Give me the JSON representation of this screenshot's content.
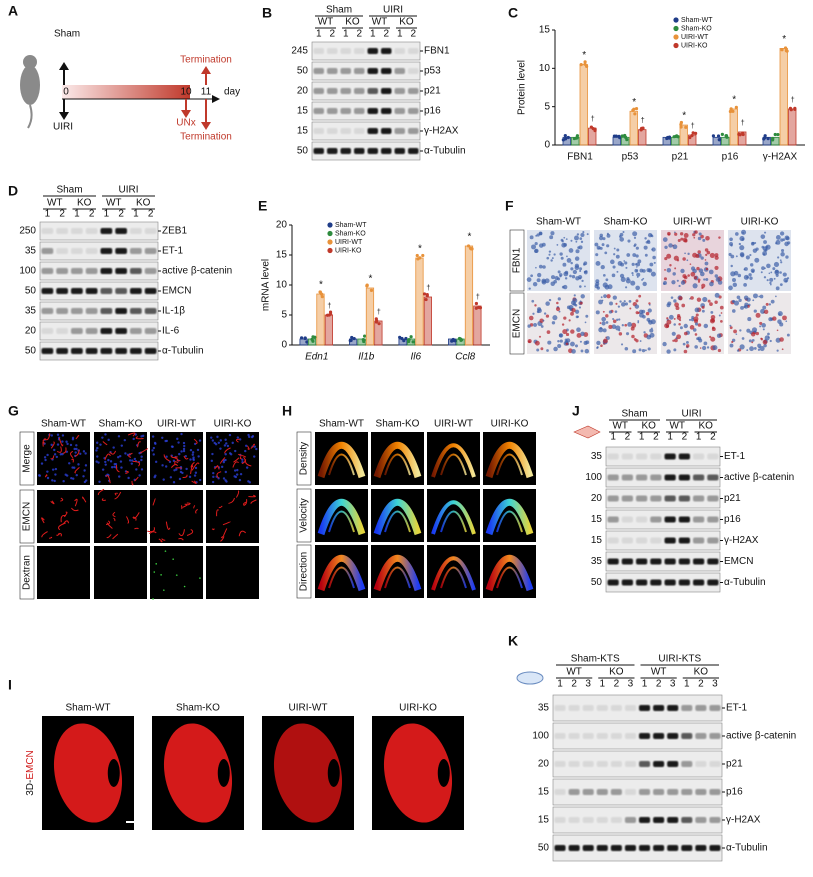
{
  "panels": {
    "A": {
      "letter": "A",
      "sham": "Sham",
      "uiri": "UIRI",
      "day0": "0",
      "day10": "10",
      "day11": "11",
      "day_unit": "day",
      "termination_top": "Termination",
      "unx": "UNx",
      "termination_bottom": "Termination"
    },
    "B": {
      "letter": "B",
      "groups": [
        "Sham",
        "UIRI"
      ],
      "genotypes": [
        "WT",
        "KO",
        "WT",
        "KO"
      ],
      "lanes": [
        "1",
        "2"
      ],
      "rows": [
        {
          "mw": "245",
          "label": "FBN1"
        },
        {
          "mw": "50",
          "label": "p53"
        },
        {
          "mw": "20",
          "label": "p21"
        },
        {
          "mw": "15",
          "label": "p16"
        },
        {
          "mw": "15",
          "label": "γ-H2AX"
        },
        {
          "mw": "50",
          "label": "α-Tubulin"
        }
      ]
    },
    "D": {
      "letter": "D",
      "groups": [
        "Sham",
        "UIRI"
      ],
      "genotypes": [
        "WT",
        "KO",
        "WT",
        "KO"
      ],
      "lanes": [
        "1",
        "2"
      ],
      "rows": [
        {
          "mw": "250",
          "label": "ZEB1"
        },
        {
          "mw": "35",
          "label": "ET-1"
        },
        {
          "mw": "100",
          "label": "active β-catenin"
        },
        {
          "mw": "50",
          "label": "EMCN"
        },
        {
          "mw": "35",
          "label": "IL-1β"
        },
        {
          "mw": "20",
          "label": "IL-6"
        },
        {
          "mw": "50",
          "label": "α-Tubulin"
        }
      ]
    },
    "F": {
      "letter": "F",
      "columns": [
        "Sham-WT",
        "Sham-KO",
        "UIRI-WT",
        "UIRI-KO"
      ],
      "rows": [
        "FBN1",
        "EMCN"
      ]
    },
    "G": {
      "letter": "G",
      "columns": [
        "Sham-WT",
        "Sham-KO",
        "UIRI-WT",
        "UIRI-KO"
      ],
      "rows": [
        "Merge",
        "EMCN",
        "Dextran"
      ]
    },
    "H": {
      "letter": "H",
      "columns": [
        "Sham-WT",
        "Sham-KO",
        "UIRI-WT",
        "UIRI-KO"
      ],
      "rows": [
        "Density",
        "Velocity",
        "Direction"
      ]
    },
    "I": {
      "letter": "I",
      "columns": [
        "Sham-WT",
        "Sham-KO",
        "UIRI-WT",
        "UIRI-KO"
      ],
      "row_prefix": "3D-",
      "row_stain": "EMCN"
    },
    "J": {
      "letter": "J",
      "groups": [
        "Sham",
        "UIRI"
      ],
      "genotypes": [
        "WT",
        "KO",
        "WT",
        "KO"
      ],
      "lanes": [
        "1",
        "2"
      ],
      "rows": [
        {
          "mw": "35",
          "label": "ET-1"
        },
        {
          "mw": "100",
          "label": "active β-catenin"
        },
        {
          "mw": "20",
          "label": "p21"
        },
        {
          "mw": "15",
          "label": "p16"
        },
        {
          "mw": "15",
          "label": "γ-H2AX"
        },
        {
          "mw": "35",
          "label": "EMCN"
        },
        {
          "mw": "50",
          "label": "α-Tubulin"
        }
      ]
    },
    "K": {
      "letter": "K",
      "groups": [
        "Sham-KTS",
        "UIRI-KTS"
      ],
      "genotypes": [
        "WT",
        "KO",
        "WT",
        "KO"
      ],
      "lanes": [
        "1",
        "2",
        "3"
      ],
      "rows": [
        {
          "mw": "35",
          "label": "ET-1"
        },
        {
          "mw": "100",
          "label": "active β-catenin"
        },
        {
          "mw": "20",
          "label": "p21"
        },
        {
          "mw": "15",
          "label": "p16"
        },
        {
          "mw": "15",
          "label": "γ-H2AX"
        },
        {
          "mw": "50",
          "label": "α-Tubulin"
        }
      ]
    }
  },
  "chart_data": [
    {
      "type": "bar",
      "letter": "C",
      "y_label": "Protein level",
      "categories": [
        "FBN1",
        "p53",
        "p21",
        "p16",
        "γ-H2AX"
      ],
      "series": [
        {
          "name": "Sham-WT",
          "color": "#1f3c88",
          "values": [
            1,
            1,
            1,
            1,
            1
          ]
        },
        {
          "name": "Sham-KO",
          "color": "#2e8b3e",
          "values": [
            1,
            1,
            1,
            1,
            1
          ]
        },
        {
          "name": "UIRI-WT",
          "color": "#e8923a",
          "values": [
            10.5,
            4.4,
            2.6,
            4.7,
            12.6
          ]
        },
        {
          "name": "UIRI-KO",
          "color": "#c0392b",
          "values": [
            2.2,
            2,
            1.3,
            1.7,
            4.7
          ]
        }
      ],
      "ylim": [
        0,
        15
      ],
      "yticks": [
        0,
        5,
        10,
        15
      ],
      "legend": "upper right",
      "marks": {
        "vs_sham": "*",
        "vs_uiri_wt": "†"
      }
    },
    {
      "type": "bar",
      "letter": "E",
      "y_label": "mRNA level",
      "categories": [
        "Edn1",
        "Il1b",
        "Il6",
        "Ccl8"
      ],
      "series": [
        {
          "name": "Sham-WT",
          "color": "#1f3c88",
          "values": [
            1,
            1,
            1,
            1
          ]
        },
        {
          "name": "Sham-KO",
          "color": "#2e8b3e",
          "values": [
            1,
            1,
            1,
            1
          ]
        },
        {
          "name": "UIRI-WT",
          "color": "#e8923a",
          "values": [
            8.5,
            9.5,
            14.5,
            16.5
          ]
        },
        {
          "name": "UIRI-KO",
          "color": "#c0392b",
          "values": [
            5,
            4,
            8,
            6.5
          ]
        }
      ],
      "ylim": [
        0,
        20
      ],
      "yticks": [
        0,
        5,
        10,
        15,
        20
      ],
      "legend": "upper left",
      "marks": {
        "vs_sham": "*",
        "vs_uiri_wt": "†"
      }
    }
  ]
}
